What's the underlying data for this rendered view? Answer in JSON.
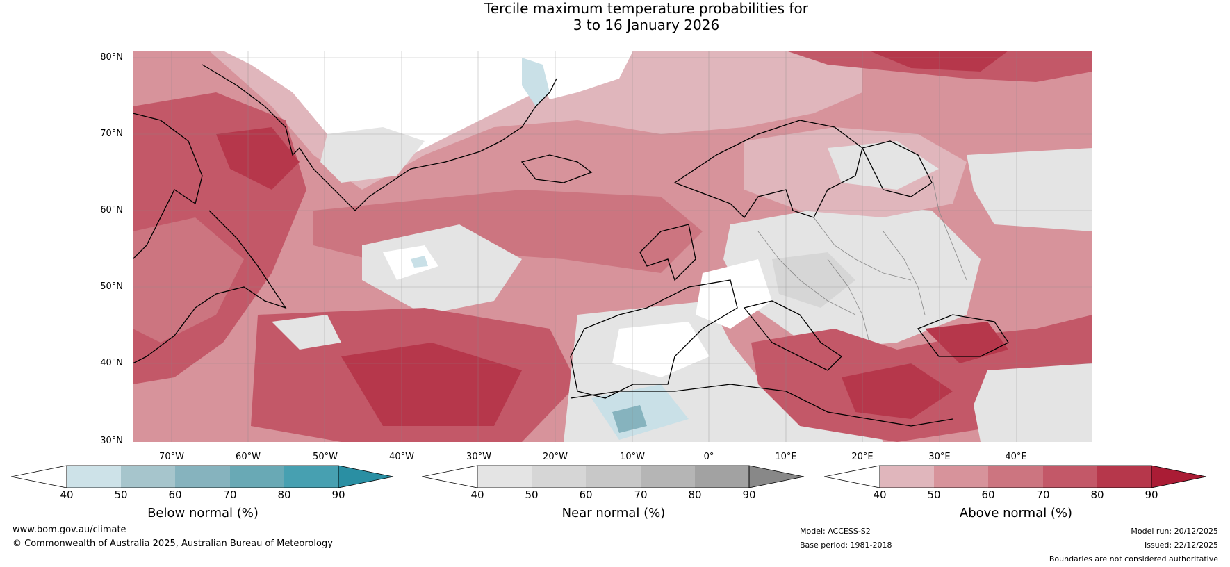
{
  "title": {
    "line1": "Tercile maximum temperature probabilities for",
    "line2": "3 to 16 January 2026"
  },
  "map": {
    "region": "North Atlantic and Europe",
    "lat_labels": [
      "80°N",
      "70°N",
      "60°N",
      "50°N",
      "40°N",
      "30°N"
    ],
    "lon_labels": [
      "70°W",
      "60°W",
      "50°W",
      "40°W",
      "30°W",
      "20°W",
      "10°W",
      "0°",
      "10°E",
      "20°E",
      "30°E",
      "40°E"
    ],
    "colors": {
      "below": [
        "#c9e0e7",
        "#a6c5cc",
        "#86b3be",
        "#69a9b5",
        "#47a0b1",
        "#2a8fa3"
      ],
      "near": [
        "#e4e4e4",
        "#d6d6d6",
        "#c8c8c8",
        "#b5b5b5",
        "#a2a2a2",
        "#888888"
      ],
      "above": [
        "#e0b6bc",
        "#d7939b",
        "#cc7580",
        "#c35868",
        "#b6374b",
        "#aa1c35"
      ]
    }
  },
  "colorbars": [
    {
      "id": "below",
      "title": "Below normal (%)",
      "ticks": [
        "40",
        "50",
        "60",
        "70",
        "80",
        "90"
      ],
      "colors": [
        "#cde2e8",
        "#a6c5cc",
        "#86b3be",
        "#69a9b5",
        "#47a0b1"
      ],
      "extend_color": "#2a8fa3"
    },
    {
      "id": "near",
      "title": "Near normal (%)",
      "ticks": [
        "40",
        "50",
        "60",
        "70",
        "80",
        "90"
      ],
      "colors": [
        "#e4e4e4",
        "#d6d6d6",
        "#c8c8c8",
        "#b5b5b5",
        "#a2a2a2"
      ],
      "extend_color": "#888888"
    },
    {
      "id": "above",
      "title": "Above normal (%)",
      "ticks": [
        "40",
        "50",
        "60",
        "70",
        "80",
        "90"
      ],
      "colors": [
        "#e0b6bc",
        "#d7939b",
        "#cc7580",
        "#c35868",
        "#b6374b"
      ],
      "extend_color": "#aa1c35"
    }
  ],
  "footer": {
    "website": "www.bom.gov.au/climate",
    "copyright": "© Commonwealth of Australia 2025, Australian Bureau of Meteorology",
    "model": "Model: ACCESS-S2",
    "base_period": "Base period: 1981-2018",
    "model_run": "Model run: 20/12/2025",
    "issued": "Issued: 22/12/2025",
    "disclaimer": "Boundaries are not considered authoritative"
  }
}
